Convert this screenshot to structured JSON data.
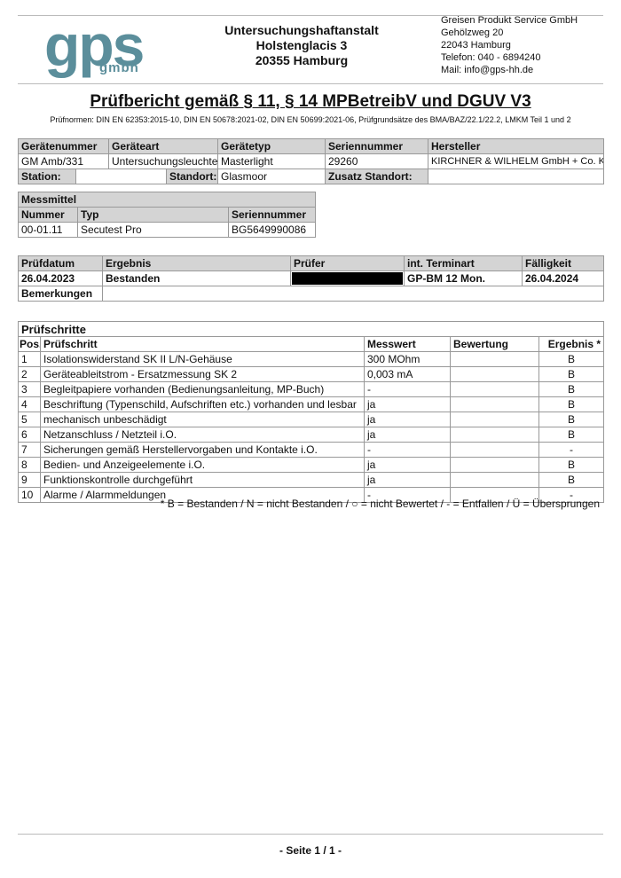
{
  "header": {
    "logo": "gps gmbh",
    "logo_main": "gps",
    "logo_sub": "gmbh",
    "customer": [
      "Untersuchungshaftanstalt",
      "Holstenglacis 3",
      "20355 Hamburg"
    ],
    "company": [
      "Greisen Produkt Service GmbH",
      "Gehölzweg 20",
      "22043 Hamburg",
      "Telefon: 040 - 6894240",
      "Mail: info@gps-hh.de"
    ]
  },
  "title": "Prüfbericht gemäß § 11, § 14 MPBetreibV und DGUV V3",
  "norms": "Prüfnormen: DIN EN 62353:2015-10, DIN EN 50678:2021-02, DIN EN 50699:2021-06, Prüfgrundsätze des BMA/BAZ/22.1/22.2, LMKM Teil 1 und 2",
  "device": {
    "headers": [
      "Gerätenummer",
      "Geräteart",
      "Gerätetyp",
      "Seriennummer",
      "Hersteller"
    ],
    "values": [
      "GM Amb/331",
      "Untersuchungsleuchte",
      "Masterlight",
      "29260",
      "KIRCHNER & WILHELM GmbH + Co. KG"
    ],
    "station_label": "Station:",
    "station": "",
    "standort_label": "Standort:",
    "standort": "Glasmoor",
    "zusatz_label": "Zusatz Standort:",
    "zusatz": ""
  },
  "messmittel": {
    "title": "Messmittel",
    "headers": [
      "Nummer",
      "Typ",
      "Seriennummer"
    ],
    "values": [
      "00-01.11",
      "Secutest Pro",
      "BG5649990086"
    ]
  },
  "pruefung": {
    "headers": [
      "Prüfdatum",
      "Ergebnis",
      "Prüfer",
      "int. Terminart",
      "Fälligkeit"
    ],
    "values": [
      "26.04.2023",
      "Bestanden",
      "",
      "GP-BM 12 Mon.",
      "26.04.2024"
    ],
    "remarks_label": "Bemerkungen",
    "remarks": ""
  },
  "steps": {
    "title": "Prüfschritte",
    "headers": [
      "Pos.",
      "Prüfschritt",
      "Messwert",
      "Bewertung",
      "Ergebnis *"
    ],
    "rows": [
      [
        "1",
        "Isolationswiderstand SK II L/N-Gehäuse",
        "300 MOhm",
        "",
        "B"
      ],
      [
        "2",
        "Geräteableitstrom - Ersatzmessung SK 2",
        "0,003 mA",
        "",
        "B"
      ],
      [
        "3",
        "Begleitpapiere vorhanden (Bedienungsanleitung, MP-Buch)",
        "-",
        "",
        "B"
      ],
      [
        "4",
        "Beschriftung (Typenschild, Aufschriften etc.) vorhanden und lesbar",
        "ja",
        "",
        "B"
      ],
      [
        "5",
        "mechanisch unbeschädigt",
        "ja",
        "",
        "B"
      ],
      [
        "6",
        "Netzanschluss / Netzteil i.O.",
        "ja",
        "",
        "B"
      ],
      [
        "7",
        "Sicherungen gemäß Herstellervorgaben und Kontakte i.O.",
        "-",
        "",
        "-"
      ],
      [
        "8",
        "Bedien- und Anzeigeelemente i.O.",
        "ja",
        "",
        "B"
      ],
      [
        "9",
        "Funktionskontrolle durchgeführt",
        "ja",
        "",
        "B"
      ],
      [
        "10",
        "Alarme / Alarmmeldungen",
        "-",
        "",
        "-"
      ]
    ],
    "footnote": "* B = Bestanden / N = nicht Bestanden / ○ = nicht Bewertet / - = Entfallen / Ü = Übersprungen"
  },
  "footer": {
    "page": "- Seite 1 / 1 -"
  },
  "colors": {
    "logo": "#5b8e9b",
    "header_bg": "#d4d4d4"
  }
}
